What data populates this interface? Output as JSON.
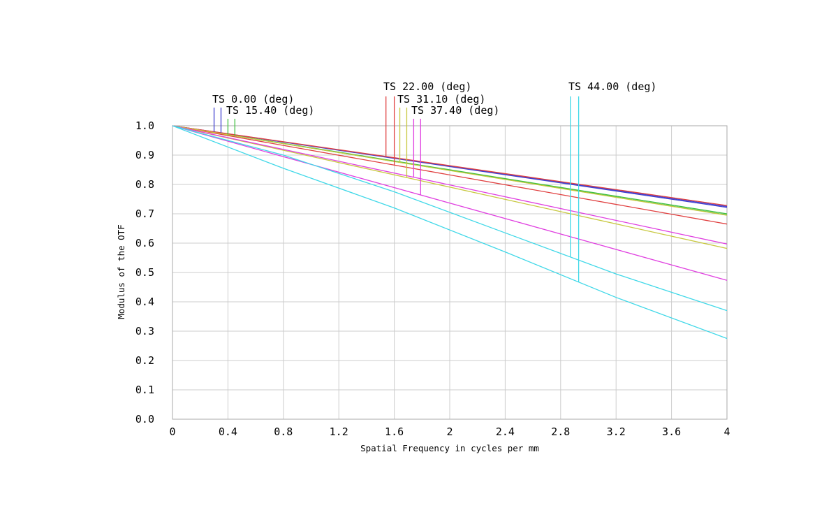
{
  "chart_data": {
    "type": "line",
    "title": "",
    "xlabel": "Spatial Frequency in cycles per mm",
    "ylabel": "Modulus of the OTF",
    "xlim": [
      0,
      4
    ],
    "ylim": [
      0,
      1
    ],
    "x_ticks": [
      "0",
      "0.4",
      "0.8",
      "1.2",
      "1.6",
      "2",
      "2.4",
      "2.8",
      "3.2",
      "3.6",
      "4"
    ],
    "y_ticks": [
      "0.0",
      "0.1",
      "0.2",
      "0.3",
      "0.4",
      "0.5",
      "0.6",
      "0.7",
      "0.8",
      "0.9",
      "1.0"
    ],
    "grid": true,
    "field_labels": [
      "TS 0.00 (deg)",
      "TS 15.40 (deg)",
      "TS 22.00 (deg)",
      "TS 31.10 (deg)",
      "TS 37.40 (deg)",
      "TS 44.00 (deg)"
    ],
    "series": [
      {
        "color": "#4040d0",
        "x": [
          0,
          4
        ],
        "y": [
          1.0,
          0.725
        ]
      },
      {
        "color": "#4040d0",
        "x": [
          0,
          4
        ],
        "y": [
          1.0,
          0.722
        ]
      },
      {
        "color": "#40c040",
        "x": [
          0,
          4
        ],
        "y": [
          1.0,
          0.7
        ]
      },
      {
        "color": "#40c040",
        "x": [
          0,
          4
        ],
        "y": [
          1.0,
          0.696
        ]
      },
      {
        "color": "#e04040",
        "x": [
          0,
          4
        ],
        "y": [
          1.0,
          0.728
        ]
      },
      {
        "color": "#e04040",
        "x": [
          0,
          4
        ],
        "y": [
          1.0,
          0.665
        ]
      },
      {
        "color": "#c8c840",
        "x": [
          0,
          4
        ],
        "y": [
          1.0,
          0.695
        ]
      },
      {
        "color": "#c8c840",
        "x": [
          0,
          4
        ],
        "y": [
          1.0,
          0.582
        ]
      },
      {
        "color": "#e040e0",
        "x": [
          0,
          4
        ],
        "y": [
          1.0,
          0.597
        ]
      },
      {
        "color": "#e040e0",
        "x": [
          0,
          4
        ],
        "y": [
          1.0,
          0.473
        ]
      },
      {
        "color": "#40d8e8",
        "x": [
          0,
          0.8,
          1.6,
          2.4,
          3.2,
          4
        ],
        "y": [
          1.0,
          0.9,
          0.775,
          0.635,
          0.495,
          0.37
        ]
      },
      {
        "color": "#40d8e8",
        "x": [
          0,
          0.8,
          1.6,
          2.4,
          3.2,
          4
        ],
        "y": [
          1.0,
          0.855,
          0.72,
          0.57,
          0.415,
          0.275
        ]
      }
    ]
  }
}
